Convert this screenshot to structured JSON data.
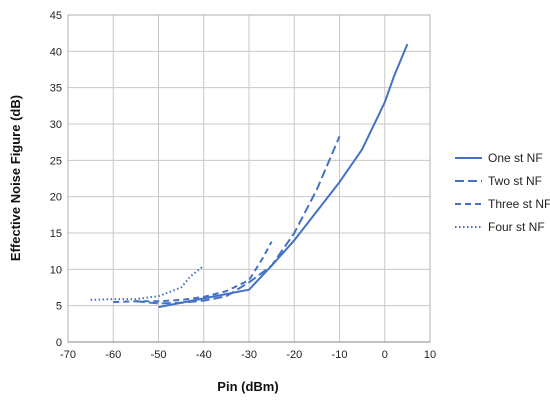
{
  "chart_data": {
    "type": "line",
    "xlabel": "Pin (dBm)",
    "ylabel": "Effective Noise Figure (dB)",
    "xlim": [
      -70,
      10
    ],
    "ylim": [
      0,
      45
    ],
    "xticks": [
      -70,
      -60,
      -50,
      -40,
      -30,
      -20,
      -10,
      0,
      10
    ],
    "yticks": [
      0,
      5,
      10,
      15,
      20,
      25,
      30,
      35,
      40,
      45
    ],
    "grid": "major x and y",
    "legend_position": "right",
    "series": [
      {
        "name": "One st NF",
        "color": "#4472C4",
        "dash": "solid",
        "x": [
          -50,
          -40,
          -30,
          -25,
          -20,
          -15,
          -10,
          -5,
          0,
          2,
          5
        ],
        "y": [
          4.8,
          6.0,
          7.2,
          10.5,
          14.0,
          18.0,
          22.0,
          26.5,
          33.0,
          36.5,
          41.0
        ]
      },
      {
        "name": "Two st NF",
        "color": "#4472C4",
        "dash": "long-dash",
        "x": [
          -55,
          -50,
          -45,
          -40,
          -35,
          -30,
          -25,
          -20,
          -15,
          -10
        ],
        "y": [
          5.6,
          5.3,
          5.4,
          5.7,
          6.3,
          8.2,
          10.5,
          15.0,
          21.0,
          28.3
        ]
      },
      {
        "name": "Three st NF",
        "color": "#4472C4",
        "dash": "dash",
        "x": [
          -60,
          -55,
          -50,
          -45,
          -40,
          -35,
          -30,
          -27,
          -25
        ],
        "y": [
          5.5,
          5.6,
          5.6,
          5.8,
          6.2,
          7.0,
          8.5,
          11.5,
          13.8
        ]
      },
      {
        "name": "Four st NF",
        "color": "#4472C4",
        "dash": "dot",
        "x": [
          -65,
          -60,
          -55,
          -50,
          -45,
          -43,
          -40
        ],
        "y": [
          5.8,
          5.9,
          5.9,
          6.3,
          7.5,
          9.0,
          10.5
        ]
      }
    ]
  }
}
